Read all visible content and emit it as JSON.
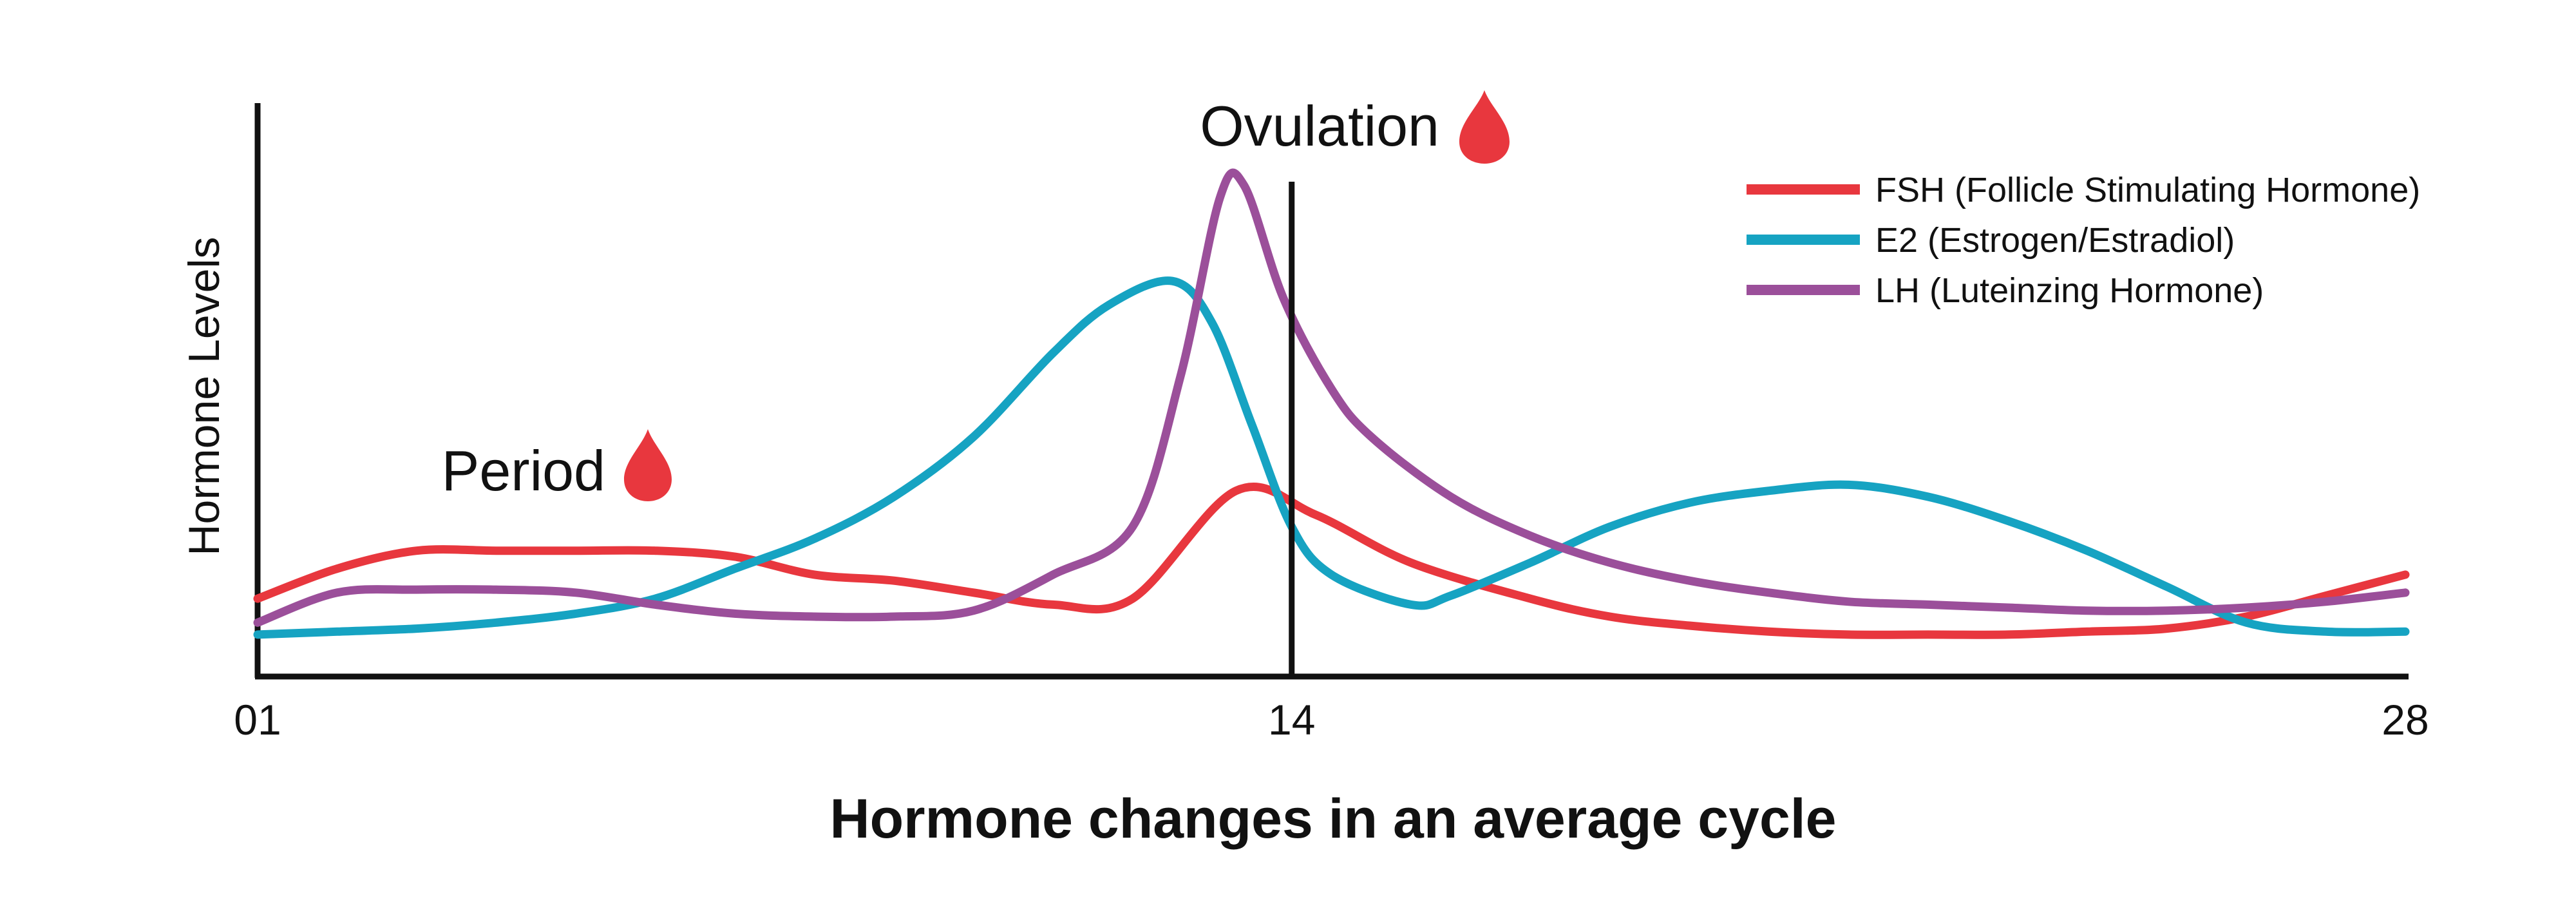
{
  "chart_data": {
    "type": "line",
    "title": "Hormone changes in an average cycle",
    "xlabel": "",
    "ylabel": "Hormone Levels",
    "xlim": [
      1,
      28
    ],
    "ylim": [
      0,
      100
    ],
    "x_ticks": [
      {
        "value": 1,
        "label": "01"
      },
      {
        "value": 14,
        "label": "14"
      },
      {
        "value": 28,
        "label": "28"
      }
    ],
    "grid": false,
    "legend_position": "top-right",
    "annotations": [
      {
        "label": "Ovulation",
        "x": 14,
        "marker": "drop",
        "line": true
      },
      {
        "label": "Period",
        "x": 5,
        "marker": "drop",
        "line": false
      }
    ],
    "series": [
      {
        "name": "FSH (Follicle Stimulating Hormone)",
        "color": "#e8373e",
        "x": [
          1,
          2,
          3,
          4,
          5,
          6,
          7,
          8,
          9,
          10,
          11,
          12,
          13.3,
          14.3,
          15.5,
          17,
          18,
          19,
          20,
          21,
          22,
          23,
          24,
          25,
          26,
          27,
          28
        ],
        "values": [
          13,
          18,
          21,
          21,
          21,
          21,
          20,
          17,
          16,
          14,
          12,
          13,
          31,
          27,
          19,
          13,
          10,
          8.5,
          7.5,
          7,
          7,
          7,
          7.5,
          8,
          10,
          13.5,
          17
        ]
      },
      {
        "name": "E2 (Estrogen/Estradiol)",
        "color": "#16a3c2",
        "x": [
          1,
          2,
          3,
          4,
          5,
          6,
          7,
          8,
          9,
          10,
          11,
          11.7,
          12.5,
          13,
          13.5,
          14,
          14.5,
          15.5,
          16,
          17,
          18,
          19,
          20,
          21,
          22,
          23,
          24,
          25,
          26,
          27,
          28
        ],
        "values": [
          7,
          7.5,
          8,
          9,
          10.5,
          13,
          18,
          23,
          30,
          40,
          54,
          62,
          66,
          59,
          42,
          25,
          17,
          12,
          13.5,
          19,
          25,
          29,
          31,
          32,
          30,
          26,
          21,
          15,
          9,
          7.5,
          7.5
        ]
      },
      {
        "name": "LH (Luteinzing Hormone)",
        "color": "#9b4f9a",
        "x": [
          1,
          2,
          3,
          4,
          5,
          6,
          7,
          8,
          9,
          10,
          11,
          12,
          12.6,
          13.1,
          13.4,
          13.9,
          14.5,
          15,
          16,
          17,
          18,
          19,
          20,
          21,
          22,
          23,
          24,
          25,
          26,
          27,
          28
        ],
        "values": [
          9,
          14,
          14.5,
          14.5,
          14,
          12,
          10.5,
          10,
          10,
          11,
          17,
          25,
          50,
          80,
          82,
          63,
          48,
          40,
          30,
          23.5,
          19,
          16,
          14,
          12.5,
          12,
          11.5,
          11,
          11,
          11.5,
          12.5,
          14
        ]
      }
    ]
  }
}
